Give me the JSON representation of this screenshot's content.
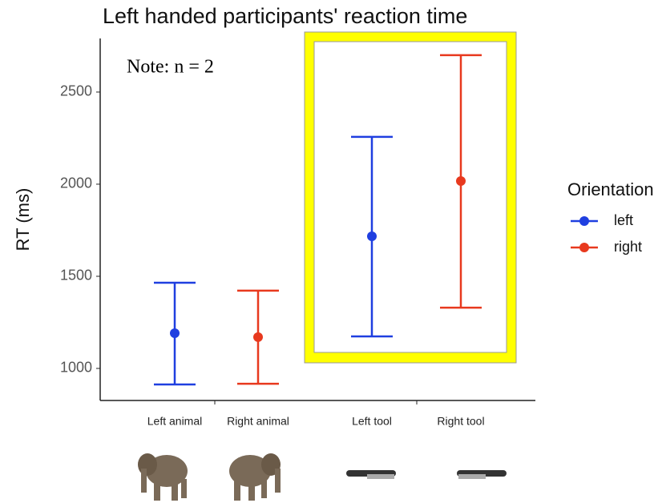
{
  "chart_data": {
    "type": "errorbar",
    "title": "Left handed participants' reaction time",
    "annotation": "Note: n = 2",
    "y_label": "RT (ms)",
    "legend_title": "Orientation",
    "categories": [
      "Left animal",
      "Right animal",
      "Left tool",
      "Right tool"
    ],
    "series": [
      {
        "name": "left",
        "color": "#1f3fe0",
        "values": [
          1191,
          null,
          1717,
          null
        ],
        "lower": [
          913,
          null,
          1174,
          null
        ],
        "upper": [
          1465,
          null,
          2257,
          null
        ]
      },
      {
        "name": "right",
        "color": "#e8391e",
        "values": [
          null,
          1170,
          null,
          2017
        ],
        "lower": [
          null,
          917,
          null,
          1330
        ],
        "upper": [
          null,
          1422,
          null,
          2700
        ]
      }
    ],
    "ylim": [
      826,
      2791
    ],
    "yticks": [
      1000,
      1500,
      2000,
      2500
    ],
    "grid": false
  }
}
